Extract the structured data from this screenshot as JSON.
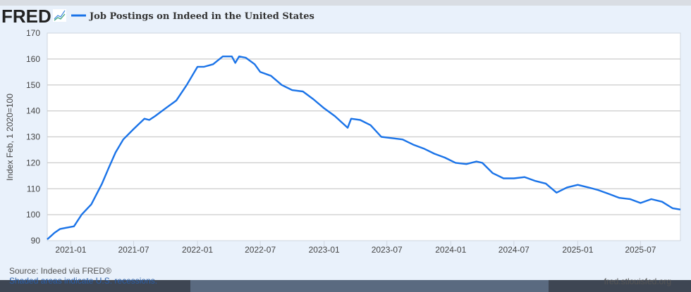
{
  "header": {
    "logo_text": "FRED",
    "legend_label": "Job Postings on Indeed in the United States"
  },
  "footer": {
    "source": "Source: Indeed via FRED®",
    "recessions_note": "Shaded areas indicate U.S. recessions.",
    "site": "fred.stlouisfed.org"
  },
  "colors": {
    "series": "#1a73e8",
    "background": "#e9f1fb",
    "plot": "#ffffff",
    "grid": "#cccccc"
  },
  "chart_data": {
    "type": "line",
    "title": "Job Postings on Indeed in the United States",
    "ylabel": "Index Feb, 1 2020=100",
    "xlabel": "",
    "ylim": [
      90,
      170
    ],
    "xlim": [
      "2020-10-25",
      "2025-10-24"
    ],
    "yticks": [
      "90",
      "100",
      "110",
      "120",
      "130",
      "140",
      "150",
      "160",
      "170"
    ],
    "xticks": [
      "2021-01",
      "2021-07",
      "2022-01",
      "2022-07",
      "2023-01",
      "2023-07",
      "2024-01",
      "2024-07",
      "2025-01",
      "2025-07"
    ],
    "grid": "horizontal",
    "legend": "top-left",
    "series": [
      {
        "name": "Job Postings on Indeed in the United States",
        "x": [
          "2020-10-25",
          "2020-11-15",
          "2020-12-01",
          "2020-12-20",
          "2021-01-10",
          "2021-02-01",
          "2021-03-01",
          "2021-04-01",
          "2021-04-20",
          "2021-05-10",
          "2021-06-01",
          "2021-07-01",
          "2021-08-01",
          "2021-08-15",
          "2021-09-01",
          "2021-10-01",
          "2021-11-01",
          "2021-12-01",
          "2022-01-01",
          "2022-01-20",
          "2022-02-15",
          "2022-03-15",
          "2022-04-10",
          "2022-04-20",
          "2022-05-01",
          "2022-05-20",
          "2022-06-15",
          "2022-07-01",
          "2022-08-01",
          "2022-09-01",
          "2022-10-01",
          "2022-11-01",
          "2022-12-01",
          "2023-01-01",
          "2023-02-01",
          "2023-03-10",
          "2023-03-20",
          "2023-04-15",
          "2023-05-15",
          "2023-06-15",
          "2023-07-15",
          "2023-08-15",
          "2023-09-15",
          "2023-10-15",
          "2023-11-15",
          "2023-12-15",
          "2024-01-15",
          "2024-02-15",
          "2024-03-15",
          "2024-04-01",
          "2024-05-01",
          "2024-06-01",
          "2024-07-01",
          "2024-08-01",
          "2024-09-01",
          "2024-10-01",
          "2024-11-01",
          "2024-12-01",
          "2025-01-01",
          "2025-02-01",
          "2025-03-01",
          "2025-04-01",
          "2025-05-01",
          "2025-06-01",
          "2025-07-01",
          "2025-08-01",
          "2025-09-01",
          "2025-10-01",
          "2025-10-24"
        ],
        "values": [
          90.5,
          93,
          94.5,
          95,
          95.5,
          100,
          104,
          112,
          118,
          124,
          129,
          133,
          137,
          136.5,
          138,
          141,
          144,
          150,
          157,
          157,
          158,
          161,
          161,
          158.5,
          161,
          160.5,
          158,
          155,
          153.5,
          150,
          148,
          147.5,
          144.5,
          141,
          138,
          133.5,
          137,
          136.5,
          134.5,
          130,
          129.5,
          129,
          127,
          125.5,
          123.5,
          122,
          120,
          119.5,
          120.5,
          120,
          116,
          114,
          114,
          114.5,
          113,
          112,
          108.5,
          110.5,
          111.5,
          110.5,
          109.5,
          108,
          106.5,
          106,
          104.5,
          106,
          105,
          102.5,
          102
        ]
      }
    ]
  }
}
